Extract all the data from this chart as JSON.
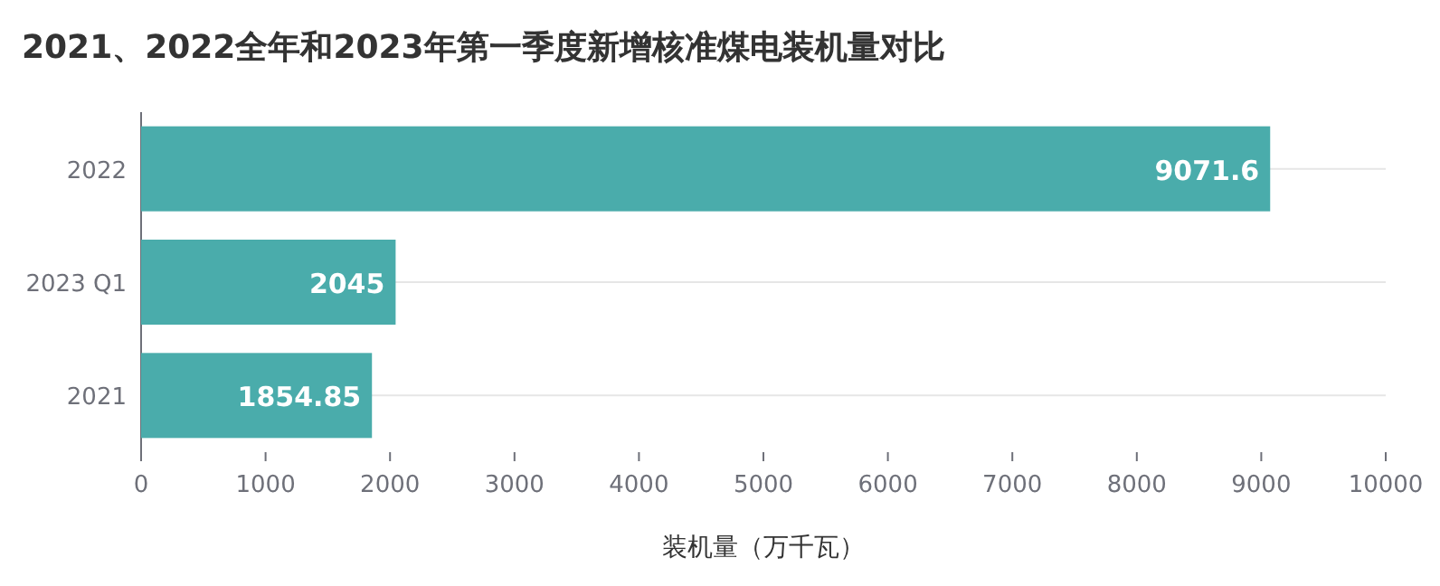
{
  "chart_data": {
    "type": "bar",
    "orientation": "horizontal",
    "title": "2021、2022全年和2023年第一季度新增核准煤电装机量对比",
    "xlabel": "装机量（万千瓦）",
    "categories": [
      "2022",
      "2023 Q1",
      "2021"
    ],
    "values": [
      9071.6,
      2045,
      1854.85
    ],
    "color": "#4aacab",
    "xlim": [
      0,
      10000
    ],
    "xticks": [
      0,
      1000,
      2000,
      3000,
      4000,
      5000,
      6000,
      7000,
      8000,
      9000,
      10000
    ],
    "grid": "y",
    "data_labels": true
  }
}
